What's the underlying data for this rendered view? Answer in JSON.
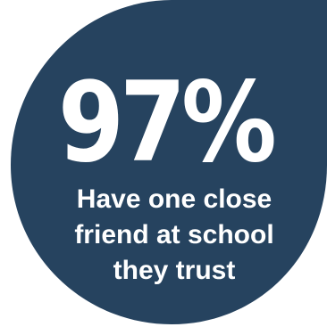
{
  "colors": {
    "background": "#ffffff",
    "shape": "#26435f",
    "text": "#ffffff"
  },
  "stat": {
    "value": "97%"
  },
  "caption": {
    "lines": [
      "Have one close",
      "friend at school",
      "they trust"
    ]
  }
}
